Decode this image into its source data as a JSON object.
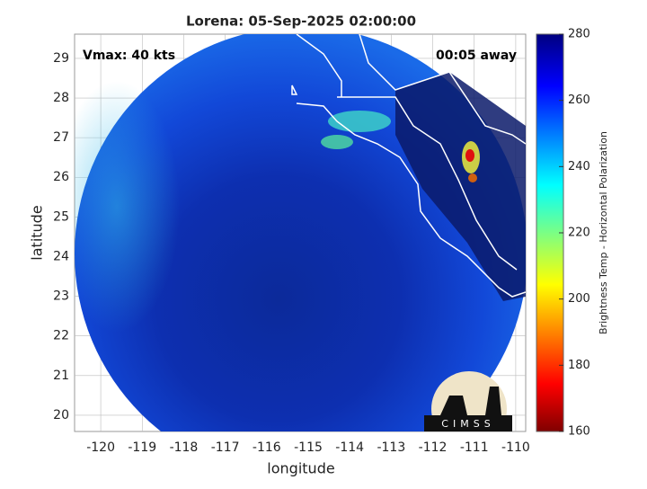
{
  "title": "Lorena: 05-Sep-2025 02:00:00",
  "annotations": {
    "left": "Vmax: 40 kts",
    "right": "00:05 away"
  },
  "x_axis": {
    "label": "longitude",
    "lim": [
      -120.63,
      -109.76
    ],
    "ticks": [
      -120,
      -119,
      -118,
      -117,
      -116,
      -115,
      -114,
      -113,
      -112,
      -111,
      -110
    ]
  },
  "y_axis": {
    "label": "latitude",
    "lim": [
      19.59,
      29.61
    ],
    "ticks": [
      20,
      21,
      22,
      23,
      24,
      25,
      26,
      27,
      28,
      29
    ]
  },
  "colorbar": {
    "label": "Brightness Temp - Horizontal Polarization",
    "lim": [
      160,
      280
    ],
    "ticks": [
      160,
      180,
      200,
      220,
      240,
      260,
      280
    ],
    "colormap": "jet"
  },
  "logo": "CIMSS"
}
